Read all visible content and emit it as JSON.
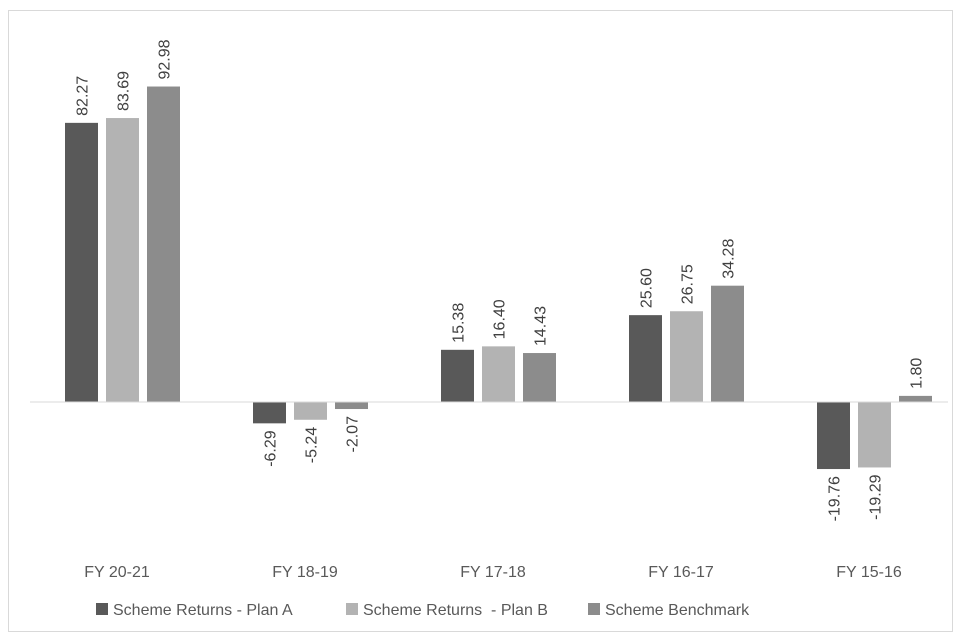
{
  "chart_data": {
    "type": "bar",
    "title": "",
    "xlabel": "",
    "ylabel": "",
    "categories": [
      "FY 20-21",
      "FY 18-19",
      "FY 17-18",
      "FY 16-17",
      "FY 15-16"
    ],
    "series": [
      {
        "name": "Scheme Returns - Plan A",
        "color": "#595959",
        "values": [
          82.27,
          -6.29,
          15.38,
          25.6,
          -19.76
        ]
      },
      {
        "name": "Scheme Returns  - Plan B",
        "color": "#b3b3b3",
        "values": [
          83.69,
          -5.24,
          16.4,
          26.75,
          -19.29
        ]
      },
      {
        "name": "Scheme Benchmark",
        "color": "#8c8c8c",
        "values": [
          92.98,
          -2.07,
          14.43,
          34.28,
          1.8
        ]
      }
    ],
    "value_labels": [
      [
        "82.27",
        "-6.29",
        "15.38",
        "25.60",
        "-19.76"
      ],
      [
        "83.69",
        "-5.24",
        "16.40",
        "26.75",
        "-19.29"
      ],
      [
        "92.98",
        "-2.07",
        "14.43",
        "34.28",
        "1.80"
      ]
    ],
    "ylim": [
      -30,
      110
    ],
    "grid": false,
    "legend": "bottom",
    "data_label_orientation": "vertical"
  }
}
